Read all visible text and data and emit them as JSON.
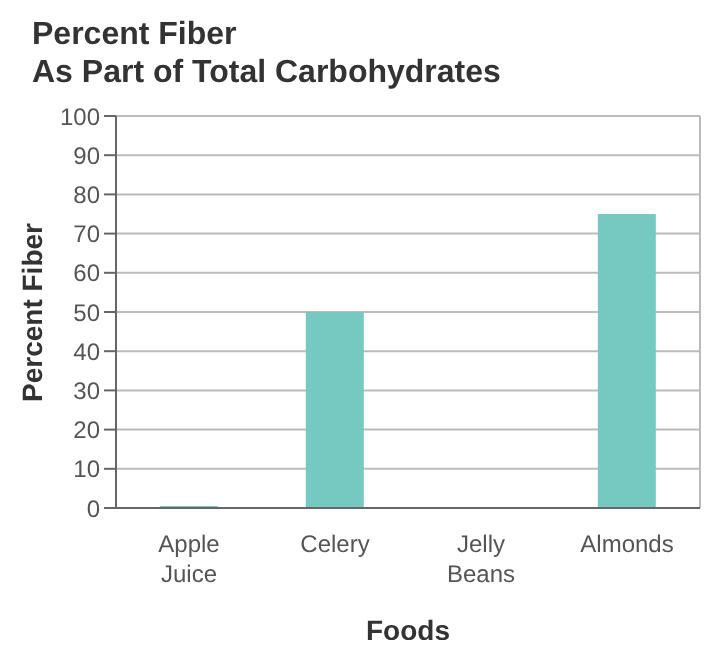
{
  "chart_data": {
    "type": "bar",
    "title": "Percent Fiber\nAs Part of Total Carbohydrates",
    "xlabel": "Foods",
    "ylabel": "Percent Fiber",
    "categories": [
      "Apple Juice",
      "Celery",
      "Jelly Beans",
      "Almonds"
    ],
    "values": [
      0.5,
      50,
      0,
      75
    ],
    "color": "#76c9c1",
    "ylim": [
      0,
      100
    ],
    "yticks": [
      0,
      10,
      20,
      30,
      40,
      50,
      60,
      70,
      80,
      90,
      100
    ],
    "grid": "y"
  }
}
